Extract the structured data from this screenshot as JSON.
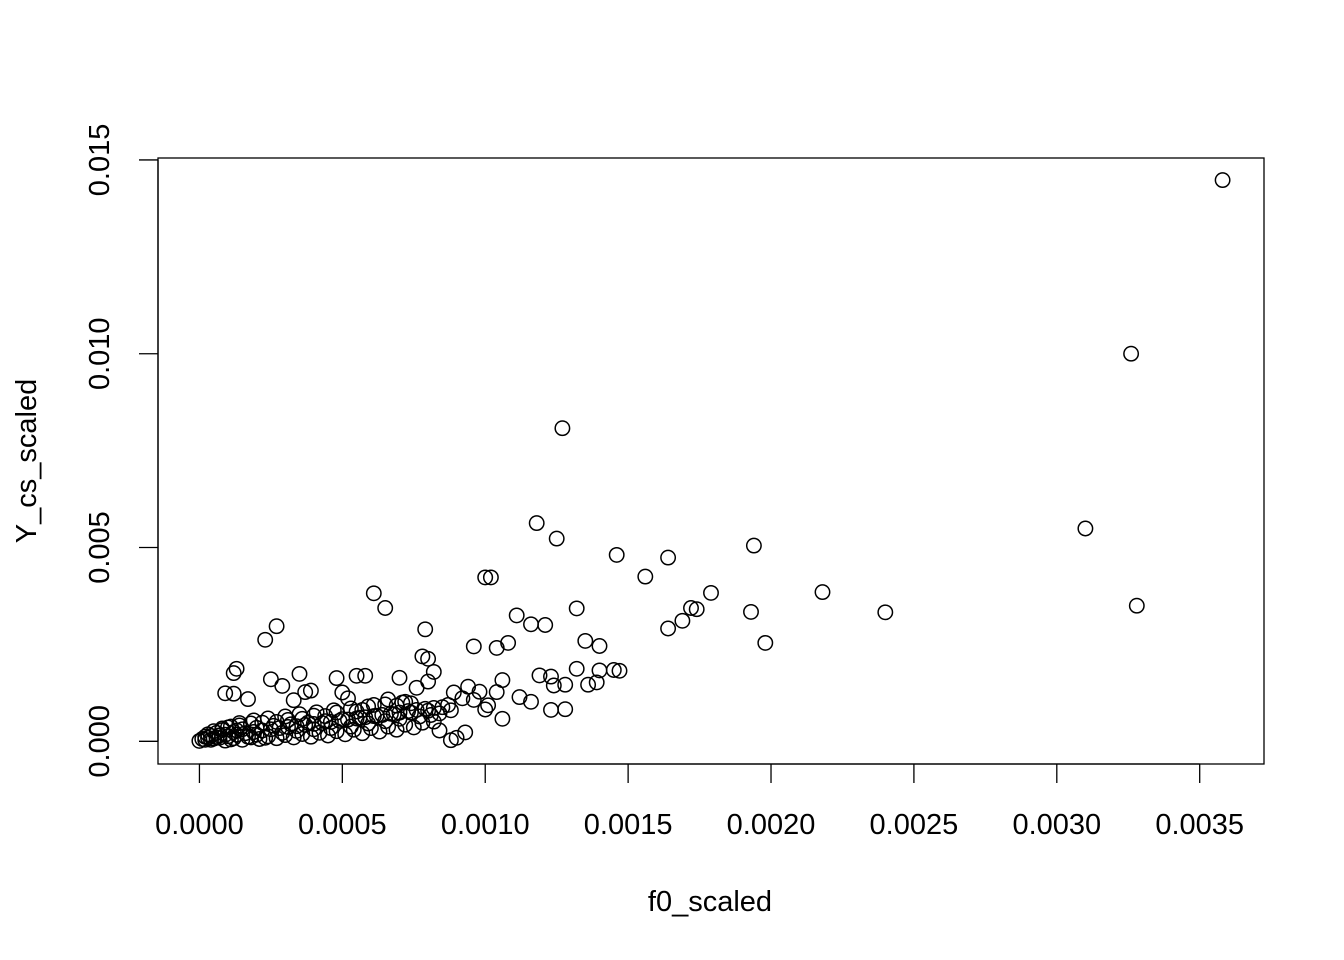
{
  "chart_data": {
    "type": "scatter",
    "title": "",
    "xlabel": "f0_scaled",
    "ylabel": "Y_cs_scaled",
    "xlim": [
      -0.000145,
      0.003725
    ],
    "ylim": [
      -0.000585,
      0.01505
    ],
    "xticks": [
      0,
      0.0005,
      0.001,
      0.0015,
      0.002,
      0.0025,
      0.003,
      0.0035
    ],
    "xtick_labels": [
      "0.0000",
      "0.0005",
      "0.0010",
      "0.0015",
      "0.0020",
      "0.0025",
      "0.0030",
      "0.0035"
    ],
    "yticks": [
      0,
      0.005,
      0.01,
      0.015
    ],
    "ytick_labels": [
      "0.000",
      "0.005",
      "0.010",
      "0.015"
    ],
    "grid": false,
    "legend": false,
    "marker": "open-circle",
    "points": [
      [
        0.00358,
        0.01448
      ],
      [
        0.00326,
        0.01
      ],
      [
        0.00127,
        0.00808
      ],
      [
        0.0031,
        0.00549
      ],
      [
        0.00328,
        0.0035
      ],
      [
        0.00118,
        0.00563
      ],
      [
        0.00125,
        0.00523
      ],
      [
        0.00146,
        0.00481
      ],
      [
        0.00164,
        0.00474
      ],
      [
        0.00194,
        0.00505
      ],
      [
        0.00156,
        0.00425
      ],
      [
        0.001,
        0.00423
      ],
      [
        0.00102,
        0.00423
      ],
      [
        0.00179,
        0.00383
      ],
      [
        0.00218,
        0.00385
      ],
      [
        0.0024,
        0.00333
      ],
      [
        0.00193,
        0.00334
      ],
      [
        0.00172,
        0.00344
      ],
      [
        0.00174,
        0.00341
      ],
      [
        0.00169,
        0.00311
      ],
      [
        0.00164,
        0.00291
      ],
      [
        0.00198,
        0.00254
      ],
      [
        0.00132,
        0.00343
      ],
      [
        0.00111,
        0.00325
      ],
      [
        0.00116,
        0.00302
      ],
      [
        0.00121,
        0.003
      ],
      [
        0.00135,
        0.00259
      ],
      [
        0.0014,
        0.00246
      ],
      [
        0.00108,
        0.00254
      ],
      [
        0.00096,
        0.00245
      ],
      [
        0.00104,
        0.00241
      ],
      [
        0.00132,
        0.00187
      ],
      [
        0.00145,
        0.00184
      ],
      [
        0.00147,
        0.00182
      ],
      [
        0.0014,
        0.00183
      ],
      [
        0.00119,
        0.0017
      ],
      [
        0.00123,
        0.00167
      ],
      [
        0.00124,
        0.00144
      ],
      [
        0.00128,
        0.00146
      ],
      [
        0.00136,
        0.00146
      ],
      [
        0.00139,
        0.00152
      ],
      [
        0.00112,
        0.00114
      ],
      [
        0.00116,
        0.00102
      ],
      [
        0.00123,
        0.00081
      ],
      [
        0.00128,
        0.00083
      ],
      [
        0.00106,
        0.00058
      ],
      [
        0.00106,
        0.00158
      ],
      [
        0.00104,
        0.00127
      ],
      [
        0.00101,
        0.00093
      ],
      [
        0.001,
        0.00082
      ],
      [
        0.00094,
        0.00141
      ],
      [
        0.00092,
        0.00111
      ],
      [
        0.00096,
        0.00107
      ],
      [
        0.00098,
        0.00128
      ],
      [
        0.00093,
        0.00023
      ],
      [
        0.0009,
        9e-05
      ],
      [
        0.00088,
        3e-05
      ],
      [
        0.00084,
        0.00028
      ],
      [
        0.00082,
        0.00051
      ],
      [
        0.00087,
        0.00094
      ],
      [
        0.00089,
        0.00126
      ],
      [
        0.00079,
        0.00289
      ],
      [
        0.00078,
        0.00219
      ],
      [
        0.0008,
        0.00213
      ],
      [
        0.00082,
        0.00179
      ],
      [
        0.0008,
        0.00154
      ],
      [
        0.00076,
        0.00138
      ],
      [
        0.00061,
        0.00382
      ],
      [
        0.00065,
        0.00344
      ],
      [
        0.00027,
        0.00297
      ],
      [
        0.00023,
        0.00262
      ],
      [
        0.0007,
        0.00164
      ],
      [
        0.00055,
        0.00169
      ],
      [
        0.00058,
        0.00169
      ],
      [
        0.00048,
        0.00163
      ],
      [
        0.00035,
        0.00174
      ],
      [
        0.00013,
        0.00187
      ],
      [
        0.00012,
        0.00176
      ],
      [
        0.00025,
        0.0016
      ],
      [
        0.00029,
        0.00143
      ],
      [
        0.00037,
        0.00127
      ],
      [
        0.00039,
        0.00131
      ],
      [
        0.00033,
        0.00106
      ],
      [
        9e-05,
        0.00124
      ],
      [
        0.00012,
        0.00123
      ],
      [
        0.00017,
        0.00109
      ],
      [
        0.0005,
        0.00126
      ],
      [
        0.00052,
        0.00111
      ],
      [
        0.00066,
        0.00108
      ],
      [
        0.00072,
        0.00102
      ],
      [
        0.00074,
        0.00098
      ],
      [
        0.00069,
        0.00092
      ],
      [
        0.00061,
        0.00094
      ],
      [
        0.00057,
        0.00081
      ],
      [
        0.00055,
        0.00077
      ],
      [
        0.00048,
        0.00074
      ],
      [
        0.00044,
        0.00065
      ],
      [
        0.0004,
        0.00066
      ],
      [
        0.00036,
        0.00058
      ],
      [
        0.00031,
        0.00055
      ],
      [
        0.00027,
        0.0005
      ],
      [
        0.00022,
        0.00048
      ],
      [
        0.00018,
        0.00046
      ],
      [
        0.00014,
        0.00041
      ],
      [
        0.00011,
        0.00038
      ],
      [
        8e-05,
        0.00033
      ],
      [
        5e-05,
        0.00026
      ],
      [
        3e-05,
        0.00018
      ],
      [
        2e-05,
        0.00012
      ],
      [
        1e-05,
        6e-05
      ],
      [
        0.0,
        1e-05
      ],
      [
        4e-05,
        4e-05
      ],
      [
        7e-05,
        9e-05
      ],
      [
        0.0001,
        0.00013
      ],
      [
        0.00013,
        0.00017
      ],
      [
        0.00016,
        0.00021
      ],
      [
        0.00019,
        0.00024
      ],
      [
        0.00022,
        0.00028
      ],
      [
        0.00025,
        0.00031
      ],
      [
        0.00028,
        0.00034
      ],
      [
        0.00031,
        0.00037
      ],
      [
        0.00034,
        0.00039
      ],
      [
        0.00037,
        0.00042
      ],
      [
        0.0004,
        0.00045
      ],
      [
        0.00043,
        0.00047
      ],
      [
        0.00046,
        0.0005
      ],
      [
        0.00049,
        0.00053
      ],
      [
        0.00052,
        0.00056
      ],
      [
        0.00055,
        0.00059
      ],
      [
        0.00058,
        0.00062
      ],
      [
        0.00061,
        0.00065
      ],
      [
        0.00064,
        0.00068
      ],
      [
        0.00067,
        0.00071
      ],
      [
        0.0007,
        0.00074
      ],
      [
        0.00073,
        0.00078
      ],
      [
        0.00076,
        0.00081
      ],
      [
        0.00079,
        0.00084
      ],
      [
        0.00082,
        0.00086
      ],
      [
        0.00085,
        0.00088
      ],
      [
        9e-05,
        2e-05
      ],
      [
        0.00015,
        4e-05
      ],
      [
        0.00021,
        6e-05
      ],
      [
        0.00027,
        8e-05
      ],
      [
        0.00033,
        0.0001
      ],
      [
        0.00039,
        0.00012
      ],
      [
        0.00045,
        0.00015
      ],
      [
        0.00051,
        0.00018
      ],
      [
        0.00057,
        0.00021
      ],
      [
        0.00063,
        0.00025
      ],
      [
        0.00069,
        0.0003
      ],
      [
        0.00075,
        0.00036
      ],
      [
        0.00012,
        8e-05
      ],
      [
        0.00018,
        0.0001
      ],
      [
        0.00024,
        0.00013
      ],
      [
        0.0003,
        0.00016
      ],
      [
        0.00036,
        0.00019
      ],
      [
        0.00042,
        0.00022
      ],
      [
        0.00048,
        0.00026
      ],
      [
        0.00054,
        0.0003
      ],
      [
        0.0006,
        0.00034
      ],
      [
        0.00066,
        0.00038
      ],
      [
        0.00072,
        0.00043
      ],
      [
        0.00078,
        0.00048
      ],
      [
        6e-05,
        0.0001
      ],
      [
        9e-05,
        0.00017
      ],
      [
        0.00012,
        0.00024
      ],
      [
        0.00015,
        0.00031
      ],
      [
        0.0002,
        0.00035
      ],
      [
        0.00026,
        0.0004
      ],
      [
        0.00032,
        0.00044
      ],
      [
        0.00038,
        0.00048
      ],
      [
        0.00044,
        0.00052
      ],
      [
        0.0005,
        0.00057
      ],
      [
        0.00056,
        0.00061
      ],
      [
        0.00062,
        0.00066
      ],
      [
        0.00068,
        0.0007
      ],
      [
        0.00074,
        0.00074
      ],
      [
        0.0008,
        0.00079
      ],
      [
        4e-05,
        0.00014
      ],
      [
        6e-05,
        0.00022
      ],
      [
        8e-05,
        0.00029
      ],
      [
        0.0001,
        0.00036
      ],
      [
        0.00014,
        0.00047
      ],
      [
        0.00019,
        0.00054
      ],
      [
        0.00024,
        0.00059
      ],
      [
        0.0003,
        0.00064
      ],
      [
        0.00035,
        0.0007
      ],
      [
        0.00041,
        0.00075
      ],
      [
        0.00047,
        0.0008
      ],
      [
        0.00053,
        0.00085
      ],
      [
        0.00059,
        0.0009
      ],
      [
        0.00065,
        0.00095
      ],
      [
        0.00071,
        0.001
      ],
      [
        2e-05,
        4e-05
      ],
      [
        3e-05,
        9e-05
      ],
      [
        5e-05,
        7e-05
      ],
      [
        7e-05,
        0.00015
      ],
      [
        0.00011,
        5e-05
      ],
      [
        0.00013,
        0.00028
      ],
      [
        0.00017,
        0.00012
      ],
      [
        0.0002,
        0.00017
      ],
      [
        0.00023,
        9e-05
      ],
      [
        0.00029,
        0.00022
      ],
      [
        0.00034,
        0.00027
      ],
      [
        0.0004,
        0.00031
      ],
      [
        0.00046,
        0.00034
      ],
      [
        0.00053,
        0.00038
      ],
      [
        0.00059,
        0.00046
      ],
      [
        0.00065,
        0.00052
      ],
      [
        0.0007,
        0.00058
      ],
      [
        0.00077,
        0.00064
      ],
      [
        0.00081,
        0.00068
      ],
      [
        0.00084,
        0.00072
      ],
      [
        0.00088,
        0.0008
      ]
    ]
  }
}
